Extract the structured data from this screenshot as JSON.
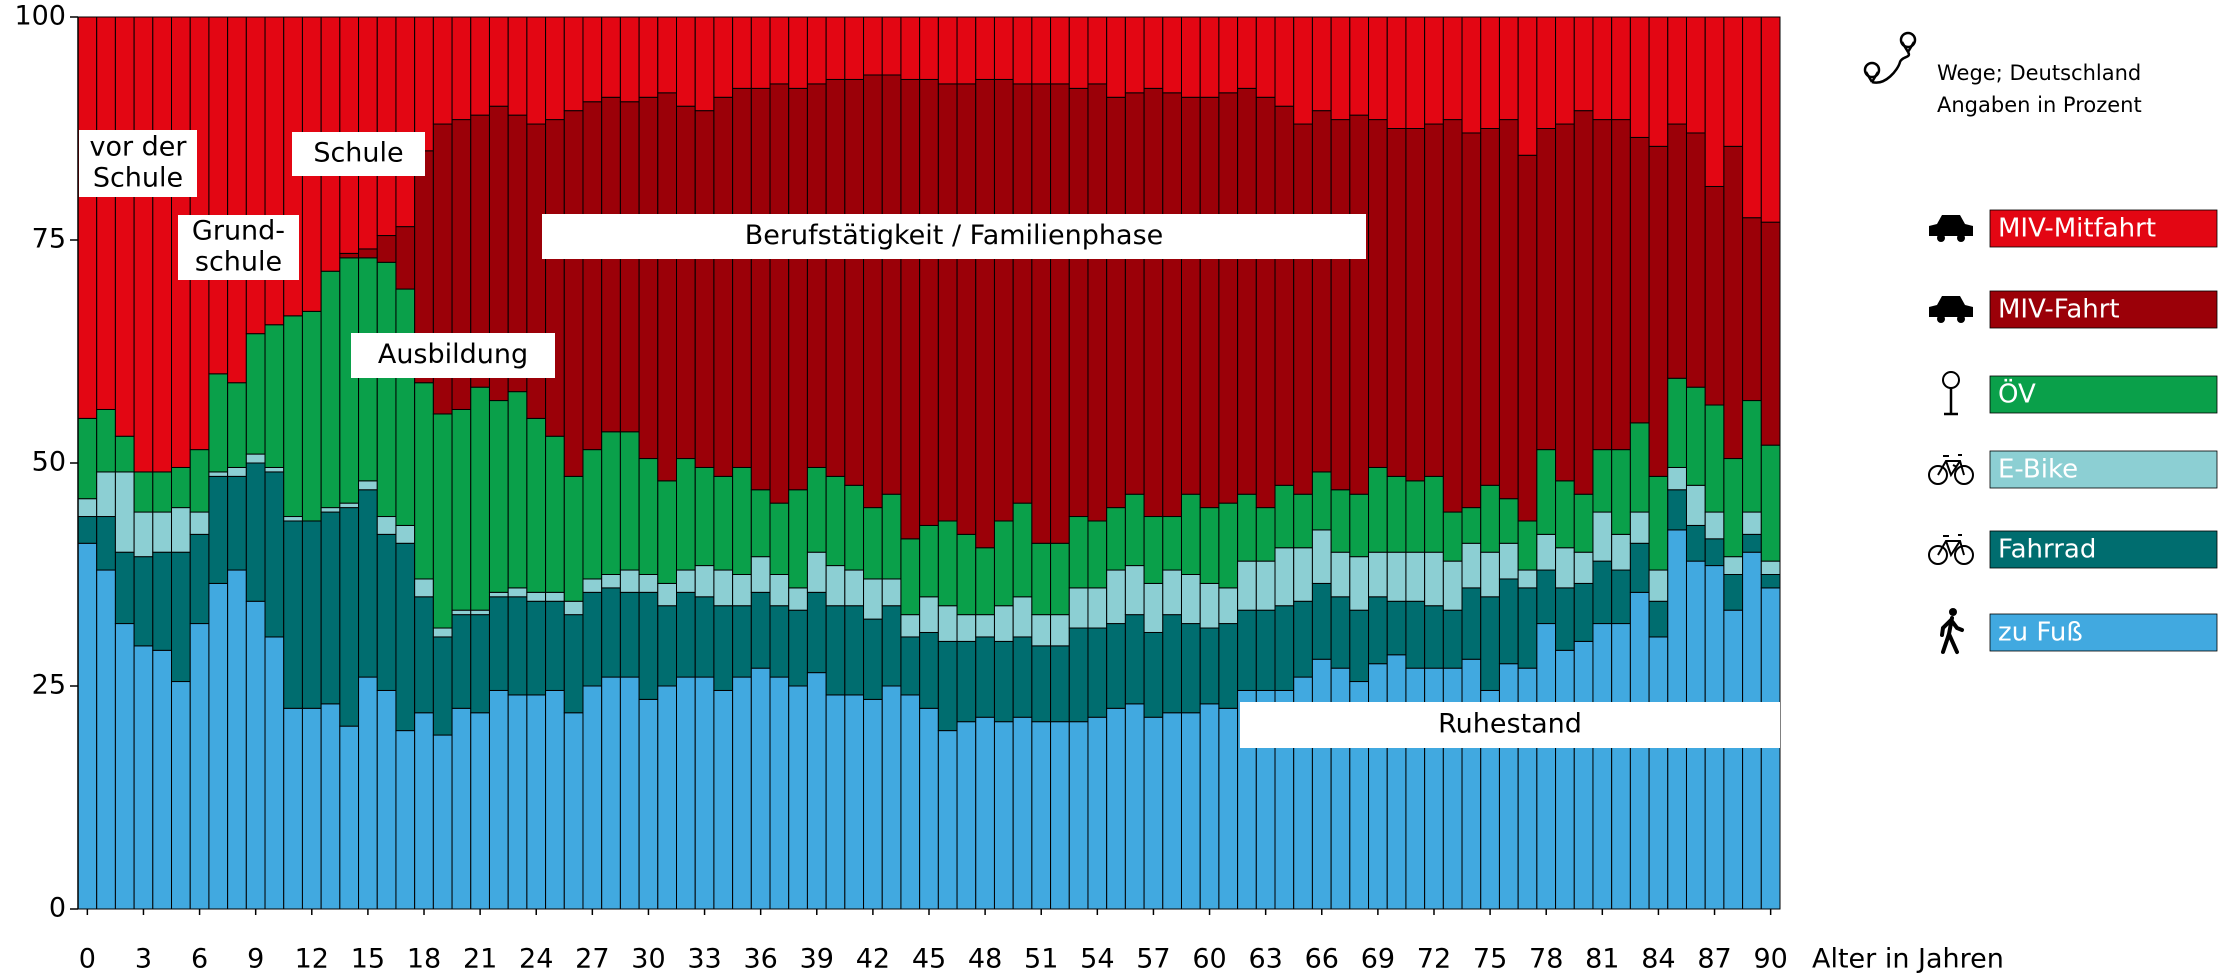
{
  "chart_data": {
    "type": "stacked_bar",
    "xlabel": "Alter in Jahren",
    "note": [
      "Wege; Deutschland",
      "Angaben in Prozent"
    ],
    "x": [
      0,
      1,
      2,
      3,
      4,
      5,
      6,
      7,
      8,
      9,
      10,
      11,
      12,
      13,
      14,
      15,
      16,
      17,
      18,
      19,
      20,
      21,
      22,
      23,
      24,
      25,
      26,
      27,
      28,
      29,
      30,
      31,
      32,
      33,
      34,
      35,
      36,
      37,
      38,
      39,
      40,
      41,
      42,
      43,
      44,
      45,
      46,
      47,
      48,
      49,
      50,
      51,
      52,
      53,
      54,
      55,
      56,
      57,
      58,
      59,
      60,
      61,
      62,
      63,
      64,
      65,
      66,
      67,
      68,
      69,
      70,
      71,
      72,
      73,
      74,
      75,
      76,
      77,
      78,
      79,
      80,
      81,
      82,
      83,
      84,
      85,
      86,
      87,
      88,
      89,
      90
    ],
    "xlim": [
      -0.5,
      90.5
    ],
    "xticks": [
      0,
      3,
      6,
      9,
      12,
      15,
      18,
      21,
      24,
      27,
      30,
      33,
      36,
      39,
      42,
      45,
      48,
      51,
      54,
      57,
      60,
      63,
      66,
      69,
      72,
      75,
      78,
      81,
      84,
      87,
      90
    ],
    "ylim": [
      0,
      100
    ],
    "yticks": [
      0,
      25,
      50,
      75,
      100
    ],
    "annotations": [
      [
        "vor der",
        "Schule"
      ],
      [
        "Grund-",
        "schule"
      ],
      [
        "Schule"
      ],
      [
        "Ausbildung"
      ],
      [
        "Berufstätigkeit / Familienphase"
      ],
      [
        "Ruhestand"
      ]
    ],
    "series": [
      {
        "name": "zu Fuß",
        "color": "#41a9e0",
        "values": [
          41,
          38,
          32,
          29.5,
          29,
          25.5,
          32,
          36.5,
          38,
          34.5,
          30.5,
          22.5,
          22.5,
          23,
          20.5,
          26,
          24.5,
          20,
          22,
          19.5,
          22.5,
          22,
          24.5,
          24,
          24,
          24.5,
          22,
          25,
          26,
          26,
          23.5,
          25,
          26,
          26,
          24.5,
          26,
          27,
          26,
          25,
          26.5,
          24,
          24,
          23.5,
          25,
          24,
          22.5,
          20,
          21,
          21.5,
          21,
          21.5,
          21,
          21,
          21,
          21.5,
          22.5,
          23,
          21.5,
          22,
          22,
          23,
          22.5,
          24.5,
          24.5,
          24.5,
          26,
          28,
          27,
          25.5,
          27.5,
          28.5,
          27,
          27,
          27,
          28,
          24.5,
          27.5,
          27,
          32,
          29,
          30,
          32,
          32,
          35.5,
          30.5,
          42.5,
          39,
          38.5,
          33.5,
          40,
          36
        ]
      },
      {
        "name": "Fahrrad",
        "color": "#006d6f",
        "values": [
          3,
          6,
          8,
          10,
          11,
          14.5,
          10,
          12,
          10.5,
          15.5,
          18.5,
          21,
          21,
          21.5,
          24.5,
          21,
          17.5,
          21,
          13,
          11,
          10.5,
          11,
          10.5,
          11,
          10.5,
          10,
          11,
          10.5,
          10,
          9.5,
          12,
          9,
          9.5,
          9,
          9.5,
          8,
          8.5,
          8,
          8.5,
          9,
          10,
          10,
          9,
          9,
          6.5,
          8.5,
          10,
          9,
          9,
          9,
          9,
          8.5,
          8.5,
          10.5,
          10,
          9.5,
          10,
          9.5,
          11,
          10,
          8.5,
          9.5,
          9,
          9,
          9.5,
          8.5,
          8.5,
          8,
          8,
          7.5,
          6,
          7.5,
          7,
          6.5,
          8,
          10.5,
          9.5,
          9,
          6,
          7,
          6.5,
          7,
          6,
          5.5,
          4,
          4.5,
          4,
          3,
          4,
          2,
          1.5
        ]
      },
      {
        "name": "E-Bike",
        "color": "#8ccfd3",
        "values": [
          2,
          5,
          9,
          5,
          4.5,
          5,
          2.5,
          0.5,
          1,
          1,
          0.5,
          0.5,
          0,
          0.5,
          0.5,
          1,
          2,
          2,
          2,
          1,
          0.5,
          0.5,
          0.5,
          1,
          1,
          1,
          1.5,
          1.5,
          1.5,
          2.5,
          2,
          2.5,
          2.5,
          3.5,
          4,
          3.5,
          4,
          3.5,
          2.5,
          4.5,
          4.5,
          4,
          4.5,
          3,
          2.5,
          4,
          4,
          3,
          2.5,
          4,
          4.5,
          3.5,
          3.5,
          4.5,
          4.5,
          6,
          5.5,
          5.5,
          5,
          5.5,
          5,
          4,
          5.5,
          5.5,
          6.5,
          6,
          6,
          5,
          6,
          5,
          5.5,
          5.5,
          6,
          5.5,
          5,
          5,
          4,
          2,
          4,
          4.5,
          3.5,
          5.5,
          4,
          3.5,
          3.5,
          2.5,
          4.5,
          3,
          2,
          2.5,
          1.5
        ]
      },
      {
        "name": "ÖV",
        "color": "#0aa04a",
        "values": [
          9,
          7,
          4,
          4.5,
          4.5,
          4.5,
          7,
          11,
          9.5,
          13.5,
          16,
          22.5,
          23.5,
          26.5,
          27.5,
          25,
          28.5,
          26.5,
          22,
          24,
          22.5,
          25,
          21.5,
          22,
          19.5,
          17.5,
          14,
          14.5,
          16,
          15.5,
          13,
          11.5,
          12.5,
          11,
          10.5,
          12,
          7.5,
          8,
          11,
          9.5,
          10,
          9.5,
          8,
          9.5,
          8.5,
          8,
          9.5,
          9,
          7.5,
          9.5,
          10.5,
          8,
          8,
          8,
          7.5,
          7,
          8,
          7.5,
          6,
          9,
          8.5,
          9.5,
          7.5,
          6,
          7,
          6,
          6.5,
          7,
          7,
          9.5,
          8.5,
          8,
          8.5,
          5.5,
          4,
          7.5,
          5,
          5.5,
          9.5,
          7.5,
          6.5,
          7,
          9.5,
          10,
          10.5,
          10,
          11,
          12,
          11,
          12.5,
          13
        ]
      },
      {
        "name": "MIV-Fahrt",
        "color": "#9b0008",
        "values": [
          0,
          0,
          0,
          0,
          0,
          0,
          0,
          0,
          0,
          0,
          0,
          0,
          0,
          0,
          0.5,
          1,
          3,
          7,
          26,
          32.5,
          32.5,
          30.5,
          33,
          31,
          33,
          35.5,
          41,
          39,
          37.5,
          37,
          40.5,
          43.5,
          39.5,
          40,
          42.5,
          42.5,
          45,
          47,
          45,
          43,
          44.5,
          45.5,
          48.5,
          47,
          51.5,
          50,
          49,
          50.5,
          52.5,
          49.5,
          47,
          51.5,
          51.5,
          48,
          49,
          46,
          45,
          48,
          47.5,
          44.5,
          46,
          46,
          45.5,
          46,
          42.5,
          41.5,
          40.5,
          41.5,
          42.5,
          39,
          39,
          39.5,
          39.5,
          44,
          42,
          40,
          42.5,
          41,
          36,
          40,
          43,
          37,
          37,
          32,
          37,
          28.5,
          28.5,
          24.5,
          35,
          20.5,
          25
        ]
      },
      {
        "name": "MIV-Mitfahrt",
        "color": "#e30613",
        "values": [
          45,
          44,
          47,
          51,
          51,
          50.5,
          48.5,
          40,
          41,
          35.5,
          34.5,
          33.5,
          33,
          28.5,
          26.5,
          26,
          24.5,
          23.5,
          15,
          12,
          11.5,
          11,
          10,
          11,
          12,
          11.5,
          10.5,
          9.5,
          9,
          9.5,
          9,
          8.5,
          10,
          10.5,
          9,
          8,
          8,
          7.5,
          8,
          7.5,
          7,
          7,
          6.5,
          6.5,
          7,
          7,
          7.5,
          7.5,
          7,
          7,
          7.5,
          7.5,
          7.5,
          8,
          7.5,
          9,
          8.5,
          8,
          8.5,
          9,
          9,
          8.5,
          8,
          9,
          10,
          12,
          10.5,
          11.5,
          11,
          11.5,
          12.5,
          12.5,
          12,
          11.5,
          13,
          12.5,
          11.5,
          15.5,
          12.5,
          12,
          10.5,
          11.5,
          11.5,
          13.5,
          14.5,
          12,
          13,
          19,
          14.5,
          22.5,
          23
        ]
      }
    ]
  }
}
